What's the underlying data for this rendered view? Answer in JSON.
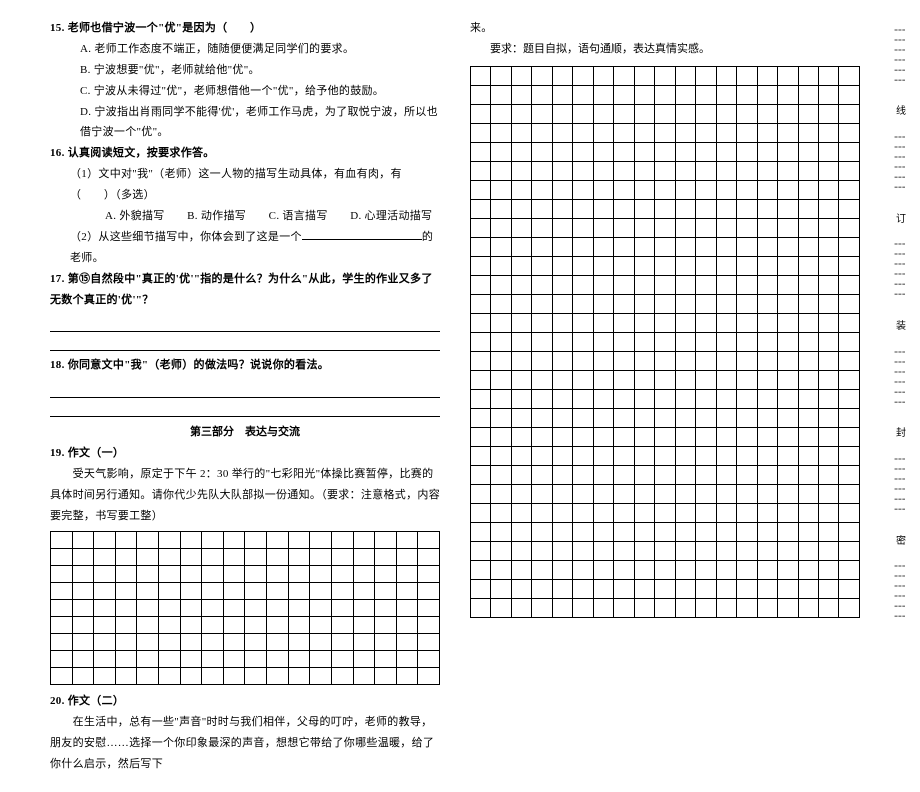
{
  "left": {
    "q15": {
      "stem": "15. 老师也借宁波一个\"优\"是因为（　　）",
      "a": "A. 老师工作态度不端正，随随便便满足同学们的要求。",
      "b": "B. 宁波想要\"优\"，老师就给他\"优\"。",
      "c": "C. 宁波从未得过\"优\"，老师想借他一个\"优\"，给予他的鼓励。",
      "d": "D. 宁波指出肖雨同学不能得'优'，老师工作马虎，为了取悦宁波，所以也借宁波一个\"优\"。"
    },
    "q16": {
      "stem": "16. 认真阅读短文，按要求作答。",
      "p1": "（1）文中对\"我\"（老师）这一人物的描写生动具体，有血有肉，有（　　）（多选）",
      "opts": "A. 外貌描写　　B. 动作描写　　C. 语言描写　　D. 心理活动描写",
      "p2a": "（2）从这些细节描写中，你体会到了这是一个",
      "p2b": "的老师。"
    },
    "q17": "17. 第⑮自然段中\"真正的'优'\"指的是什么？为什么\"从此，学生的作业又多了无数个真正的'优'\"？",
    "q18": "18. 你同意文中\"我\"（老师）的做法吗？说说你的看法。",
    "section3": "第三部分　表达与交流",
    "q19": {
      "title": "19. 作文（一）",
      "body": "　　受天气影响，原定于下午 2：30 举行的\"七彩阳光\"体操比赛暂停，比赛的具体时间另行通知。请你代少先队大队部拟一份通知。（要求：注意格式，内容要完整，书写要工整）"
    },
    "q20": {
      "title": "20. 作文（二）",
      "body": "　　在生活中，总有一些\"声音\"时时与我们相伴，父母的叮咛，老师的教导，朋友的安慰……选择一个你印象最深的声音，想想它带给了你哪些温暖，给了你什么启示，然后写下"
    }
  },
  "right": {
    "cont": "来。",
    "req": "要求：题目自拟，语句通顺，表达真情实感。"
  },
  "binding": [
    "线",
    "订",
    "装",
    "封",
    "密"
  ],
  "grids": {
    "small_rows": 9,
    "small_cols": 18,
    "big_rows": 29,
    "big_cols": 19,
    "cell_h_small": 17,
    "cell_h_big": 19
  }
}
